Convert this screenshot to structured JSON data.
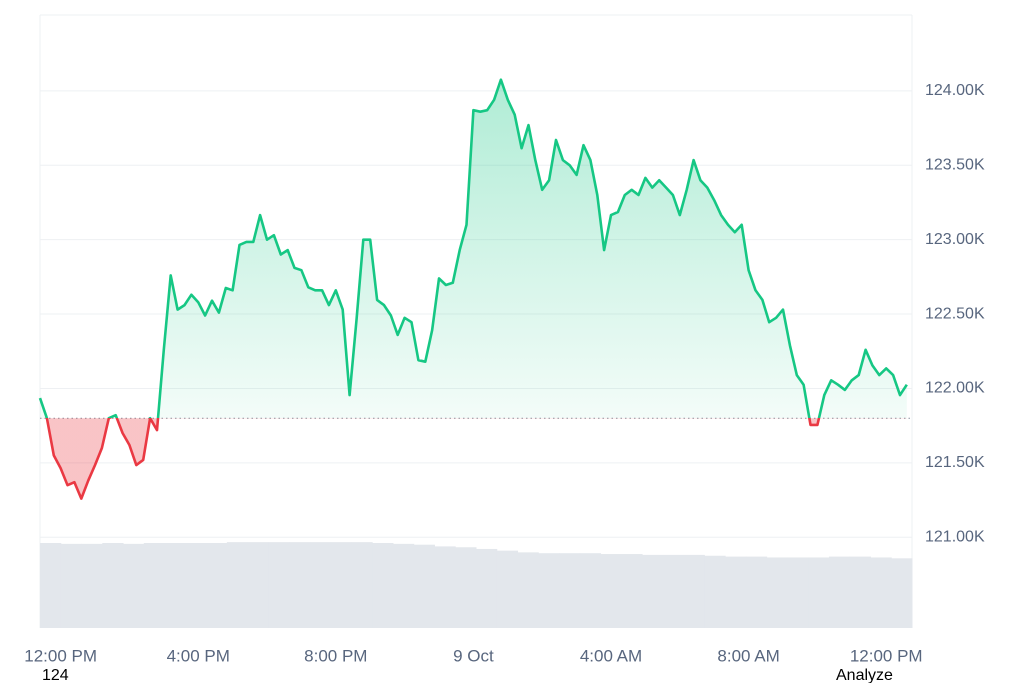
{
  "chart_data": {
    "type": "line",
    "x": [
      -0.6,
      -0.4,
      -0.2,
      0,
      0.2,
      0.4,
      0.6,
      0.8,
      1,
      1.2,
      1.4,
      1.6,
      1.8,
      2,
      2.2,
      2.4,
      2.6,
      2.8,
      3,
      3.2,
      3.4,
      3.6,
      3.8,
      4,
      4.2,
      4.4,
      4.6,
      4.8,
      5,
      5.2,
      5.4,
      5.6,
      5.8,
      6,
      6.2,
      6.4,
      6.6,
      6.8,
      7,
      7.2,
      7.4,
      7.6,
      7.8,
      8,
      8.2,
      8.4,
      8.6,
      8.8,
      9,
      9.2,
      9.4,
      9.6,
      9.8,
      10,
      10.2,
      10.4,
      10.6,
      10.8,
      11,
      11.2,
      11.4,
      11.6,
      11.8,
      12,
      12.2,
      12.4,
      12.6,
      12.8,
      13,
      13.2,
      13.4,
      13.6,
      13.8,
      14,
      14.2,
      14.4,
      14.6,
      14.8,
      15,
      15.2,
      15.4,
      15.6,
      15.8,
      16,
      16.2,
      16.4,
      16.6,
      16.8,
      17,
      17.2,
      17.4,
      17.6,
      17.8,
      18,
      18.2,
      18.4,
      18.6,
      18.8,
      19,
      19.2,
      19.4,
      19.6,
      19.8,
      20,
      20.2,
      20.4,
      20.6,
      20.8,
      21,
      21.2,
      21.4,
      21.6,
      21.8,
      22,
      22.2,
      22.4,
      22.6,
      22.8,
      23,
      23.2,
      23.4,
      23.6,
      23.8,
      24,
      24.2,
      24.4,
      24.6
    ],
    "values": [
      121935,
      121800,
      121550,
      121465,
      121350,
      121370,
      121260,
      121380,
      121485,
      121600,
      121800,
      121820,
      121700,
      121620,
      121485,
      121520,
      121800,
      121720,
      122260,
      122760,
      122530,
      122560,
      122630,
      122580,
      122490,
      122590,
      122510,
      122675,
      122660,
      122965,
      122985,
      122985,
      123165,
      123000,
      123030,
      122900,
      122930,
      122810,
      122795,
      122680,
      122660,
      122660,
      122560,
      122660,
      122530,
      121955,
      122460,
      123000,
      123000,
      122595,
      122560,
      122490,
      122360,
      122475,
      122445,
      122190,
      122180,
      122390,
      122740,
      122695,
      122710,
      122930,
      123100,
      123870,
      123860,
      123870,
      123940,
      124075,
      123940,
      123840,
      123615,
      123770,
      123535,
      123335,
      123400,
      123670,
      123535,
      123500,
      123435,
      123635,
      123535,
      123300,
      122930,
      123165,
      123185,
      123300,
      123335,
      123300,
      123415,
      123350,
      123400,
      123350,
      123300,
      123165,
      123335,
      123535,
      123400,
      123350,
      123265,
      123165,
      123100,
      123050,
      123100,
      122795,
      122660,
      122595,
      122445,
      122475,
      122530,
      122290,
      122090,
      122025,
      121755,
      121755,
      121955,
      122055,
      122025,
      121990,
      122055,
      122090,
      122260,
      122155,
      122090,
      122135,
      122090,
      121955,
      122025
    ],
    "baseline": 121800,
    "colors": {
      "up": "#16c784",
      "down": "#ea3943",
      "volume": "#e3e7ec"
    },
    "xlim": [
      -0.6,
      24.75
    ],
    "ylim": [
      120390,
      124510
    ],
    "xticks": [
      {
        "value": 0,
        "label": "12:00 PM"
      },
      {
        "value": 4,
        "label": "4:00 PM"
      },
      {
        "value": 8,
        "label": "8:00 PM"
      },
      {
        "value": 12,
        "label": "9 Oct"
      },
      {
        "value": 16,
        "label": "4:00 AM"
      },
      {
        "value": 20,
        "label": "8:00 AM"
      },
      {
        "value": 24,
        "label": "12:00 PM"
      }
    ],
    "yticks": [
      {
        "value": 121000,
        "label": "121.00K"
      },
      {
        "value": 121500,
        "label": "121.50K"
      },
      {
        "value": 122000,
        "label": "122.00K"
      },
      {
        "value": 122500,
        "label": "122.50K"
      },
      {
        "value": 123000,
        "label": "123.00K"
      },
      {
        "value": 123500,
        "label": "123.50K"
      },
      {
        "value": 124000,
        "label": "124.00K"
      }
    ],
    "grid": true,
    "volume_values": [
      100,
      99,
      99,
      100,
      99,
      100,
      100,
      100,
      100,
      101,
      101,
      101,
      101,
      101,
      101,
      101,
      100,
      99,
      98,
      96,
      95,
      93,
      91,
      89,
      88,
      88,
      88,
      87,
      87,
      86,
      86,
      86,
      85,
      84,
      84,
      83,
      83,
      83,
      84,
      84,
      83,
      82
    ],
    "volume_lim": [
      0,
      100
    ]
  },
  "footer": {
    "left": "124",
    "right": "Analyze"
  }
}
